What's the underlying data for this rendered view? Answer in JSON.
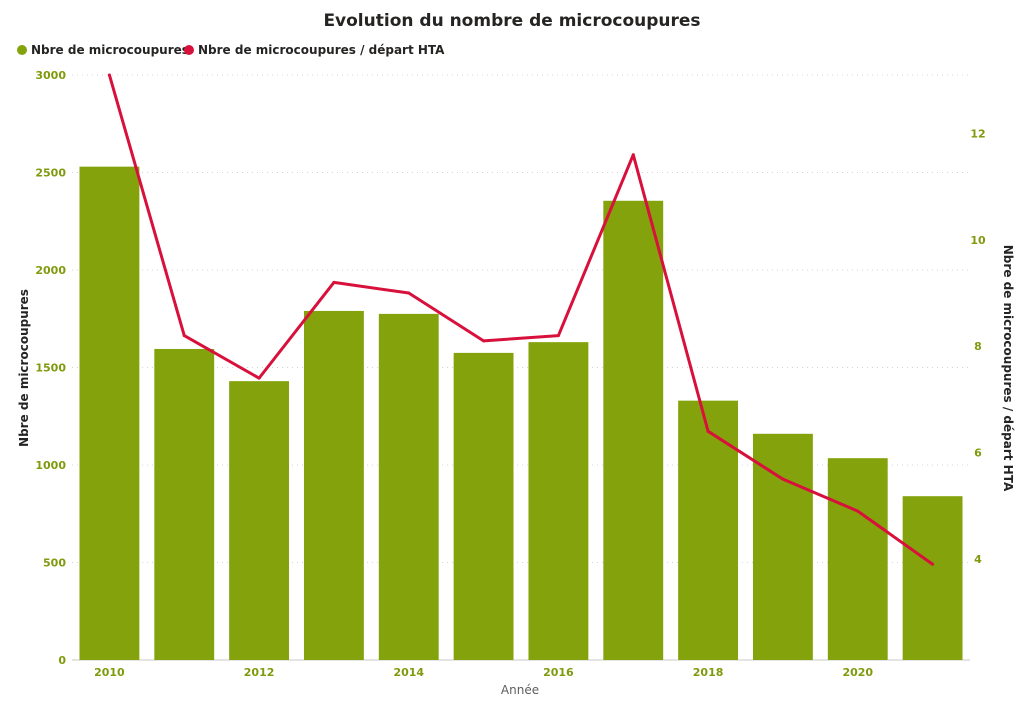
{
  "colors": {
    "bar": "#84a20b",
    "line": "#d8113c",
    "tick": "#7f9a0c",
    "text": "#252423"
  },
  "chart_data": {
    "type": "bar",
    "title": "Evolution du nombre de microcoupures",
    "xlabel": "Année",
    "ylabel": "Nbre de microcoupures",
    "y2label": "Nbre de microcoupures / départ HTA",
    "legend_position": "top-left",
    "grid": true,
    "x": [
      2010,
      2011,
      2012,
      2013,
      2014,
      2015,
      2016,
      2017,
      2018,
      2019,
      2020,
      2021
    ],
    "x_tick_labels": [
      "2010",
      "2012",
      "2014",
      "2016",
      "2018",
      "2020"
    ],
    "x_tick_values": [
      2010,
      2012,
      2014,
      2016,
      2018,
      2020
    ],
    "ylim": [
      0,
      3000
    ],
    "y_ticks": [
      0,
      500,
      1000,
      1500,
      2000,
      2500,
      3000
    ],
    "y2lim": [
      2.1,
      13.1
    ],
    "y2_ticks": [
      4,
      6,
      8,
      10,
      12
    ],
    "series": [
      {
        "name": "Nbre de microcoupures",
        "type": "bar",
        "axis": "left",
        "values": [
          2530,
          1595,
          1430,
          1790,
          1775,
          1575,
          1630,
          2355,
          1330,
          1160,
          1035,
          840
        ]
      },
      {
        "name": "Nbre de microcoupures / départ HTA",
        "type": "line",
        "axis": "right",
        "values": [
          13.1,
          8.2,
          7.4,
          9.2,
          9.0,
          8.1,
          8.2,
          11.6,
          6.4,
          5.5,
          4.9,
          3.9
        ]
      }
    ]
  }
}
